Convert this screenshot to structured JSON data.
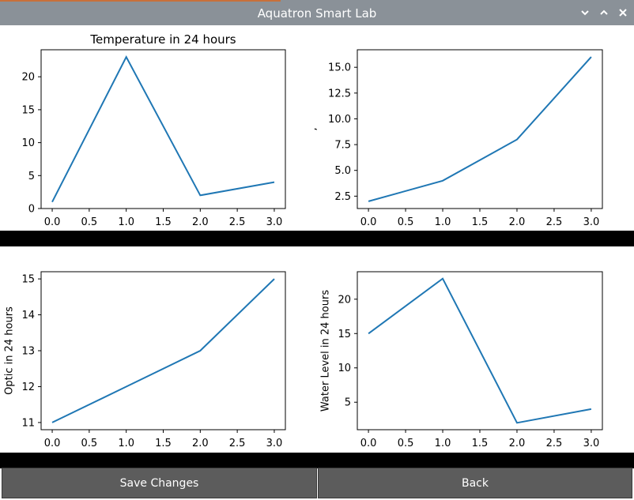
{
  "window": {
    "title": "Aquatron Smart Lab",
    "accent_color": "#c8703a",
    "titlebar_color": "#8a9198"
  },
  "controls": {
    "minimize": "chevron-down-icon",
    "maximize": "chevron-up-icon",
    "close": "close-icon"
  },
  "buttons": {
    "save_label": "Save Changes",
    "back_label": "Back",
    "color": "#5c5c5c"
  },
  "chart_data": [
    {
      "type": "line",
      "title": "Temperature in 24 hours",
      "ylabel": "",
      "x": [
        0.0,
        1.0,
        2.0,
        3.0
      ],
      "y": [
        1,
        23,
        2,
        4
      ],
      "xlim": [
        -0.15,
        3.15
      ],
      "ylim": [
        0,
        24.1
      ],
      "xticks": [
        "0.0",
        "0.5",
        "1.0",
        "1.5",
        "2.0",
        "2.5",
        "3.0"
      ],
      "yticks": [
        "0",
        "5",
        "10",
        "15",
        "20"
      ],
      "line_color": "#1f77b4"
    },
    {
      "type": "line",
      "title": "",
      "ylabel": "ʼ",
      "x": [
        0.0,
        1.0,
        2.0,
        3.0
      ],
      "y": [
        2,
        4,
        8,
        16
      ],
      "xlim": [
        -0.15,
        3.15
      ],
      "ylim": [
        1.3,
        16.7
      ],
      "xticks": [
        "0.0",
        "0.5",
        "1.0",
        "1.5",
        "2.0",
        "2.5",
        "3.0"
      ],
      "yticks": [
        "2.5",
        "5.0",
        "7.5",
        "10.0",
        "12.5",
        "15.0"
      ],
      "line_color": "#1f77b4"
    },
    {
      "type": "line",
      "title": "",
      "ylabel": "Optic in 24 hours",
      "x": [
        0.0,
        1.0,
        2.0,
        3.0
      ],
      "y": [
        11,
        12,
        13,
        15
      ],
      "xlim": [
        -0.15,
        3.15
      ],
      "ylim": [
        10.8,
        15.2
      ],
      "xticks": [
        "0.0",
        "0.5",
        "1.0",
        "1.5",
        "2.0",
        "2.5",
        "3.0"
      ],
      "yticks": [
        "11",
        "12",
        "13",
        "14",
        "15"
      ],
      "line_color": "#1f77b4"
    },
    {
      "type": "line",
      "title": "",
      "ylabel": "Water Level in 24 hours",
      "x": [
        0.0,
        1.0,
        2.0,
        3.0
      ],
      "y": [
        15,
        23,
        2,
        4
      ],
      "xlim": [
        -0.15,
        3.15
      ],
      "ylim": [
        1,
        24
      ],
      "xticks": [
        "0.0",
        "0.5",
        "1.0",
        "1.5",
        "2.0",
        "2.5",
        "3.0"
      ],
      "yticks": [
        "5",
        "10",
        "15",
        "20"
      ],
      "line_color": "#1f77b4"
    }
  ]
}
